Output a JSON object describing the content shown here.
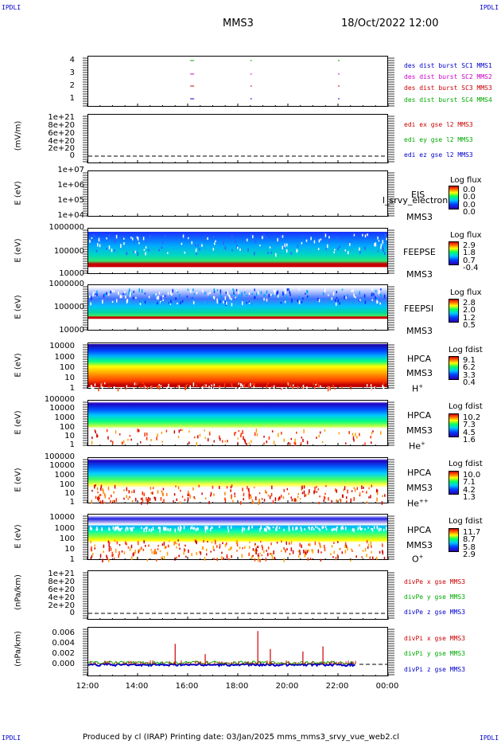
{
  "corner_tl": "IPDLI",
  "corner_tr": "IPDLI",
  "corner_bl": "IPDLI",
  "corner_br": "IPDLI",
  "title": "MMS3",
  "datetime": "18/Oct/2022 12:00",
  "footer": "Produced by cl (IRAP)   Printing date: 03/Jan/2025   mms_mms3_srvy_vue_web2.cl",
  "x_ticks": [
    "12:00",
    "14:00",
    "16:00",
    "18:00",
    "20:00",
    "22:00",
    "00:00"
  ],
  "panels": {
    "p1": {
      "yticks": [
        "4",
        "3",
        "2",
        "1"
      ],
      "legend": [
        {
          "text": "des dist burst SC1 MMS1",
          "color": "#0000cc"
        },
        {
          "text": "des dist burst SC2 MMS2",
          "color": "#cc00cc"
        },
        {
          "text": "des dist burst SC3 MMS3",
          "color": "#cc0000"
        },
        {
          "text": "des dist burst SC4 MMS4",
          "color": "#00aa00"
        }
      ]
    },
    "p2": {
      "ylabel": "(mV/m)",
      "yticks": [
        "1e+21",
        "8e+20",
        "6e+20",
        "4e+20",
        "2e+20",
        "0"
      ],
      "legend": [
        {
          "text": "edi ex gse l2 MMS3",
          "color": "#cc0000"
        },
        {
          "text": "edi ey gse l2 MMS3",
          "color": "#00aa00"
        },
        {
          "text": "edi ez gse l2 MMS3",
          "color": "#0000cc"
        }
      ]
    },
    "p3": {
      "ylabel": "E (eV)",
      "yticks": [
        "1e+07",
        "1e+06",
        "1e+05",
        "1e+04"
      ],
      "label1": "EIS",
      "label2": "MMS3",
      "overlay": "l_srvy_electron to",
      "cb_title": "Log flux",
      "cb_nums": [
        "0.0",
        "0.0",
        "0.0",
        "0.0"
      ]
    },
    "p4": {
      "ylabel": "E (eV)",
      "yticks": [
        "1000000",
        "100000",
        "10000"
      ],
      "label1": "FEEPSE",
      "label2": "MMS3",
      "cb_title": "Log flux",
      "cb_nums": [
        "2.9",
        "1.8",
        "0.7",
        "-0.4"
      ]
    },
    "p5": {
      "ylabel": "E (eV)",
      "yticks": [
        "1000000",
        "100000",
        "10000"
      ],
      "label1": "FEEPSI",
      "label2": "MMS3",
      "cb_title": "Log flux",
      "cb_nums": [
        "2.8",
        "2.0",
        "1.2",
        "0.5"
      ]
    },
    "p6": {
      "ylabel": "E (eV)",
      "yticks": [
        "10000",
        "1000",
        "100",
        "10",
        "1"
      ],
      "label1": "HPCA",
      "label2": "MMS3",
      "species": "H",
      "charge": "+",
      "cb_title": "Log fdist",
      "cb_nums": [
        "9.1",
        "6.2",
        "3.3",
        "0.4"
      ]
    },
    "p7": {
      "ylabel": "E (eV)",
      "yticks": [
        "100000",
        "10000",
        "1000",
        "100",
        "10",
        "1"
      ],
      "label1": "HPCA",
      "label2": "MMS3",
      "species": "He",
      "charge": "+",
      "cb_title": "Log fdist",
      "cb_nums": [
        "10.2",
        "7.3",
        "4.5",
        "1.6"
      ]
    },
    "p8": {
      "ylabel": "E (eV)",
      "yticks": [
        "100000",
        "10000",
        "1000",
        "100",
        "10",
        "1"
      ],
      "label1": "HPCA",
      "label2": "MMS3",
      "species": "He",
      "charge": "++",
      "cb_title": "Log fdist",
      "cb_nums": [
        "10.0",
        "7.1",
        "4.2",
        "1.3"
      ]
    },
    "p9": {
      "ylabel": "E (eV)",
      "yticks": [
        "10000",
        "1000",
        "100",
        "10",
        "1"
      ],
      "label1": "HPCA",
      "label2": "MMS3",
      "species": "O",
      "charge": "+",
      "cb_title": "Log fdist",
      "cb_nums": [
        "11.7",
        "8.7",
        "5.8",
        "2.9"
      ]
    },
    "p10": {
      "ylabel": "(nPa/km)",
      "yticks": [
        "1e+21",
        "8e+20",
        "6e+20",
        "4e+20",
        "2e+20",
        "0"
      ],
      "legend": [
        {
          "text": "divPe x gse MMS3",
          "color": "#cc0000"
        },
        {
          "text": "divPe y gse MMS3",
          "color": "#00aa00"
        },
        {
          "text": "divPe z gse MMS3",
          "color": "#0000cc"
        }
      ]
    },
    "p11": {
      "ylabel": "(nPa/km)",
      "yticks": [
        "0.006",
        "0.004",
        "0.002",
        "0.000"
      ],
      "legend": [
        {
          "text": "divPi x gse MMS3",
          "color": "#cc0000"
        },
        {
          "text": "divPi y gse MMS3",
          "color": "#00aa00"
        },
        {
          "text": "divPi z gse MMS3",
          "color": "#0000cc"
        }
      ]
    }
  },
  "chart_data": {
    "type": "heatmap",
    "title": "MMS3",
    "x_range": [
      "12:00",
      "00:00"
    ],
    "burst_intervals_hours": [
      16.1,
      18.5,
      22.0
    ],
    "divPi_x_peaks": [
      {
        "t": 15.5,
        "v": 0.004
      },
      {
        "t": 16.7,
        "v": 0.002
      },
      {
        "t": 18.8,
        "v": 0.0065
      },
      {
        "t": 19.3,
        "v": 0.003
      },
      {
        "t": 20.6,
        "v": 0.0025
      },
      {
        "t": 21.4,
        "v": 0.0035
      }
    ],
    "divPi_ylim": [
      0,
      0.007
    ]
  }
}
